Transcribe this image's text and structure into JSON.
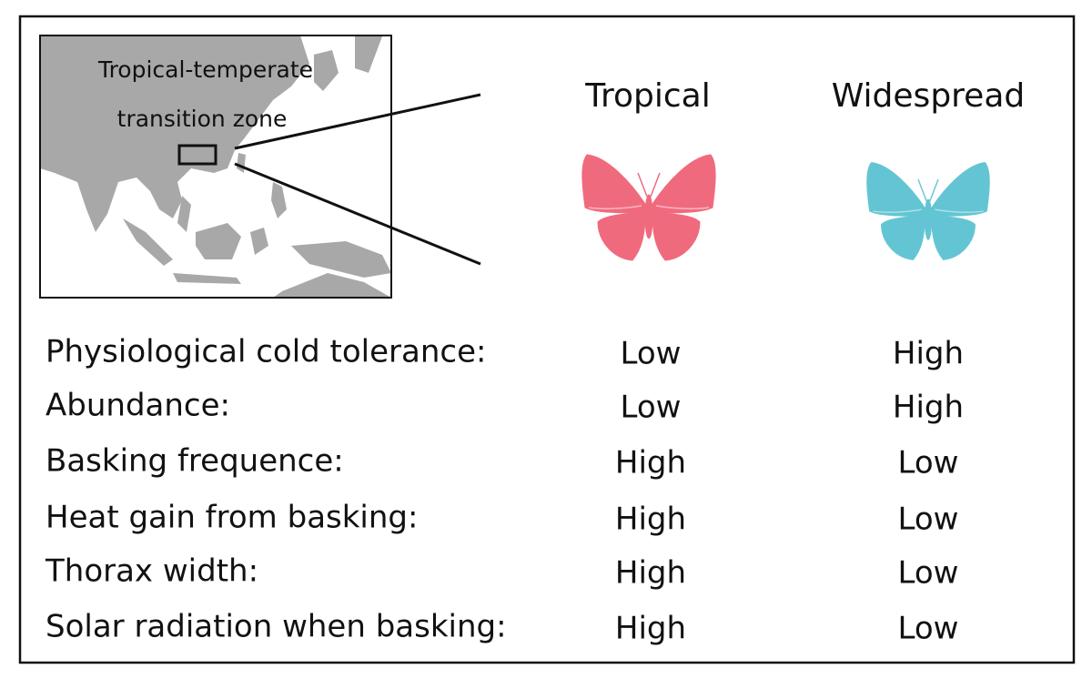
{
  "map": {
    "label_lines": [
      "Tropical-temperate",
      "transition zone"
    ]
  },
  "columns": [
    "Tropical",
    "Widespread"
  ],
  "rows": [
    {
      "trait": "Physiological cold tolerance:",
      "values": [
        "Low",
        "High"
      ]
    },
    {
      "trait": "Abundance:",
      "values": [
        "Low",
        "High"
      ]
    },
    {
      "trait": "Basking frequence:",
      "values": [
        "High",
        "Low"
      ]
    },
    {
      "trait": "Heat gain from basking:",
      "values": [
        "High",
        "Low"
      ]
    },
    {
      "trait": "Thorax width:",
      "values": [
        "High",
        "Low"
      ]
    },
    {
      "trait": "Solar radiation when basking:",
      "values": [
        "High",
        "Low"
      ]
    }
  ]
}
